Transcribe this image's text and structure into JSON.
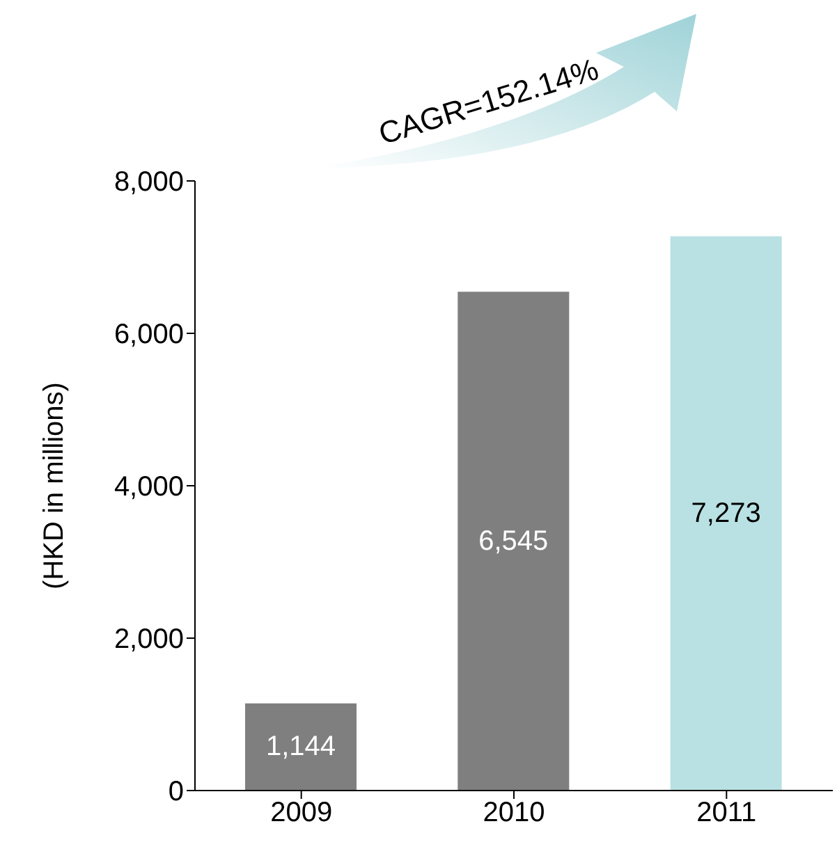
{
  "chart_data": {
    "type": "bar",
    "categories": [
      "2009",
      "2010",
      "2011"
    ],
    "values": [
      1144,
      6545,
      7273
    ],
    "colors": [
      "#7f7f7f",
      "#7f7f7f",
      "#b9e1e3"
    ],
    "ylabel": "(HKD in millions)",
    "ylim": [
      0,
      8000
    ],
    "yticks": [
      {
        "value": 0,
        "label": "0"
      },
      {
        "value": 2000,
        "label": "2,000"
      },
      {
        "value": 4000,
        "label": "4,000"
      },
      {
        "value": 6000,
        "label": "6,000"
      },
      {
        "value": 8000,
        "label": "8,000"
      }
    ],
    "value_labels": [
      "1,144",
      "6,545",
      "7,273"
    ],
    "grid": false,
    "legend": false,
    "annotations": [
      "CAGR=152.14%"
    ]
  }
}
